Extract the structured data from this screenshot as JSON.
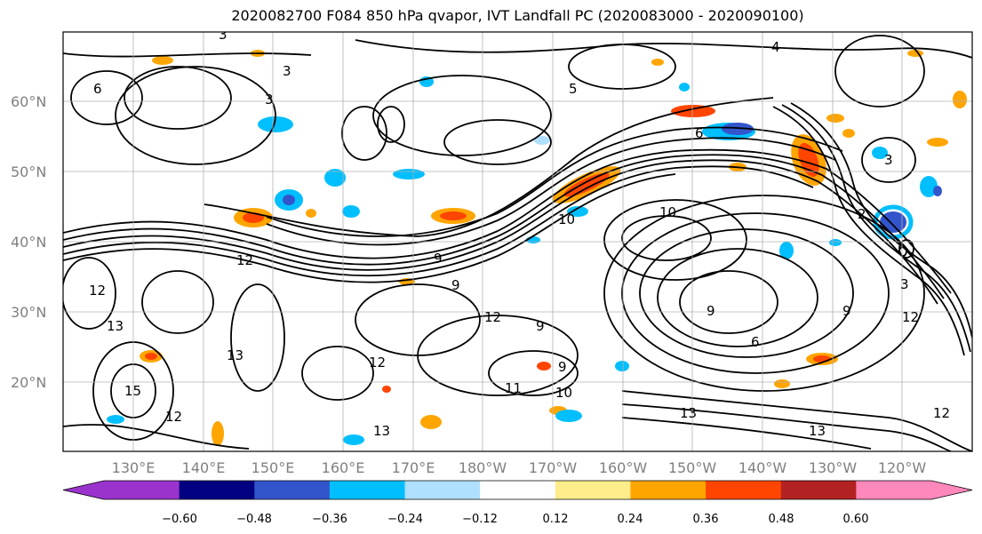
{
  "title": "2020082700 F084 850 hPa qvapor, IVT Landfall PC (2020083000 - 2020090100)",
  "lat_labels": [
    "60°N",
    "50°N",
    "40°N",
    "30°N",
    "20°N"
  ],
  "lon_labels": [
    "130°E",
    "140°E",
    "150°E",
    "160°E",
    "170°E",
    "180°W",
    "170°W",
    "160°W",
    "150°W",
    "140°W",
    "130°W",
    "120°W"
  ],
  "colorbar": {
    "colors": [
      "#9933cc",
      "#000080",
      "#3355cc",
      "#00bfff",
      "#b0e0ff",
      "#ffffff",
      "#ffec8b",
      "#ffa500",
      "#ff4500",
      "#b22222",
      "#ff88bb"
    ],
    "tick_labels": [
      "−0.60",
      "−0.48",
      "−0.36",
      "−0.24",
      "−0.12",
      "0.12",
      "0.24",
      "0.36",
      "0.48",
      "0.60"
    ]
  },
  "contour_labels": [
    "3",
    "3",
    "5",
    "3",
    "6",
    "9",
    "9",
    "12",
    "10",
    "10",
    "12",
    "12",
    "13",
    "13",
    "15",
    "12",
    "9",
    "12",
    "9",
    "11",
    "10",
    "13",
    "13",
    "13",
    "12",
    "2",
    "3",
    "4",
    "6",
    "9",
    "6",
    "3",
    "12",
    "9"
  ]
}
